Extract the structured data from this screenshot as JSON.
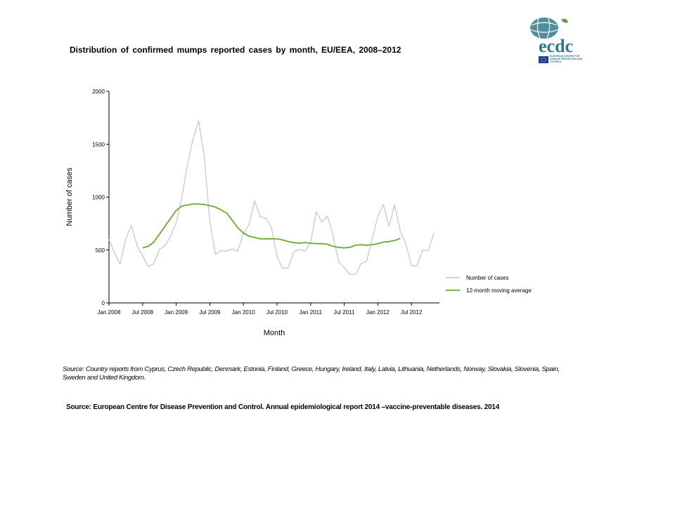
{
  "header": {
    "title": "Distribution  of confirmed  mumps  reported cases by month,  EU/EEA,  2008–2012",
    "logo_text": "ecdc",
    "logo_subtext": "EUROPEAN CENTRE FOR DISEASE PREVENTION AND CONTROL",
    "logo_color": "#2f7a8c",
    "logo_green": "#5aa83a"
  },
  "chart_data": {
    "type": "line",
    "xlabel": "Month",
    "ylabel": "Number of cases",
    "ylim": [
      0,
      2000
    ],
    "yticks": [
      0,
      500,
      1000,
      1500,
      2000
    ],
    "x_tick_labels": [
      "Jan 2008",
      "Jul 2008",
      "Jan 2009",
      "Jul 2009",
      "Jan 2010",
      "Jul 2010",
      "Jan 2011",
      "Jul 2011",
      "Jan 2012",
      "Jul 2012"
    ],
    "x_tick_months": [
      0,
      6,
      12,
      18,
      24,
      30,
      36,
      42,
      48,
      54
    ],
    "x_range_months": [
      0,
      59
    ],
    "legend_position": "right",
    "series": [
      {
        "name": "Number of cases",
        "color": "#cccccc",
        "start_month": 0,
        "values": [
          600,
          470,
          370,
          610,
          730,
          545,
          445,
          345,
          370,
          505,
          540,
          630,
          760,
          1000,
          1300,
          1550,
          1720,
          1390,
          770,
          460,
          495,
          490,
          510,
          490,
          660,
          740,
          965,
          815,
          800,
          715,
          440,
          325,
          330,
          485,
          505,
          490,
          570,
          865,
          765,
          820,
          640,
          390,
          335,
          270,
          270,
          370,
          395,
          605,
          820,
          930,
          725,
          925,
          680,
          555,
          350,
          355,
          500,
          495,
          660
        ]
      },
      {
        "name": "12-month moving average",
        "color": "#6aaa32",
        "start_month": 6,
        "values": [
          520,
          535,
          575,
          650,
          725,
          800,
          875,
          915,
          925,
          935,
          935,
          930,
          920,
          905,
          880,
          850,
          780,
          710,
          660,
          630,
          620,
          605,
          605,
          605,
          605,
          595,
          580,
          570,
          565,
          570,
          565,
          560,
          560,
          555,
          535,
          525,
          520,
          525,
          545,
          550,
          545,
          550,
          560,
          575,
          580,
          590,
          610
        ]
      }
    ]
  },
  "footer": {
    "note": "Source: Country reports from Cyprus, Czech Republic, Denmark, Estonia, Finland, Greece, Hungary, Ireland, Italy, Latvia, Lithuania, Netherlands, Norway, Slovakia, Slovenia, Spain, Sweden and United Kingdom.",
    "source": "Source: European Centre for Disease Prevention and Control.  Annual epidemiological report 2014 –vaccine-preventable diseases. 2014"
  }
}
